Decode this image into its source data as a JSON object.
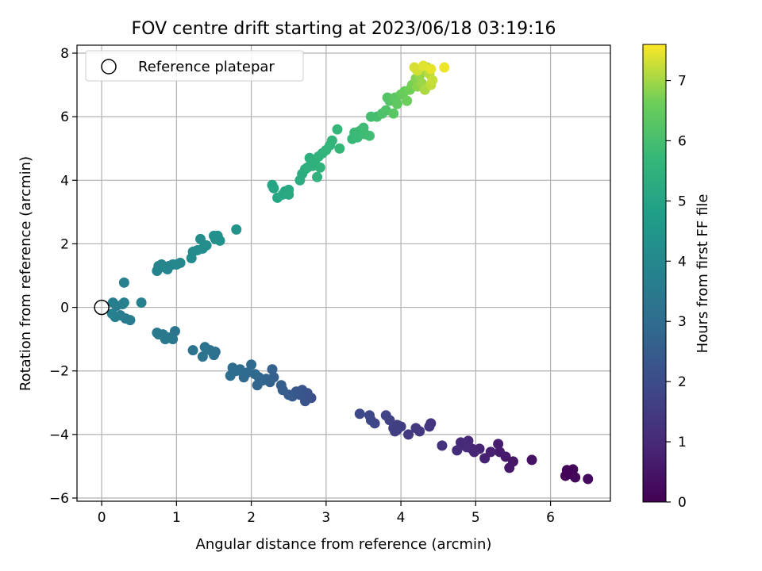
{
  "chart_data": {
    "type": "scatter",
    "title": "FOV centre drift starting at 2023/06/18 03:19:16",
    "xlabel": "Angular distance from reference (arcmin)",
    "ylabel": "Rotation from reference (arcmin)",
    "xlim": [
      -0.33,
      6.8
    ],
    "ylim": [
      -6.1,
      8.25
    ],
    "xticks": [
      0,
      1,
      2,
      3,
      4,
      5,
      6
    ],
    "yticks": [
      -6,
      -4,
      -2,
      0,
      2,
      4,
      6,
      8
    ],
    "grid": true,
    "legend": {
      "position": "top-left",
      "entries": [
        "Reference platepar"
      ]
    },
    "reference_point": {
      "x": 0,
      "y": 0,
      "label": "Reference platepar"
    },
    "colorbar": {
      "label": "Hours from first FF file",
      "colormap": "viridis",
      "range": [
        0,
        7.6
      ],
      "ticks": [
        0,
        1,
        2,
        3,
        4,
        5,
        6,
        7
      ]
    },
    "points": [
      {
        "x": 6.2,
        "y": -5.3,
        "c": 0.05
      },
      {
        "x": 6.22,
        "y": -5.12,
        "c": 0.1
      },
      {
        "x": 6.25,
        "y": -5.18,
        "c": 0.12
      },
      {
        "x": 6.3,
        "y": -5.1,
        "c": 0.15
      },
      {
        "x": 6.28,
        "y": -5.25,
        "c": 0.08
      },
      {
        "x": 6.33,
        "y": -5.35,
        "c": 0.2
      },
      {
        "x": 6.5,
        "y": -5.4,
        "c": 0.25
      },
      {
        "x": 5.75,
        "y": -4.8,
        "c": 0.4
      },
      {
        "x": 5.5,
        "y": -4.85,
        "c": 0.5
      },
      {
        "x": 5.45,
        "y": -5.05,
        "c": 0.55
      },
      {
        "x": 5.4,
        "y": -4.7,
        "c": 0.6
      },
      {
        "x": 5.32,
        "y": -4.55,
        "c": 0.65
      },
      {
        "x": 5.3,
        "y": -4.3,
        "c": 0.7
      },
      {
        "x": 5.2,
        "y": -4.55,
        "c": 0.75
      },
      {
        "x": 5.12,
        "y": -4.75,
        "c": 0.8
      },
      {
        "x": 5.05,
        "y": -4.45,
        "c": 0.85
      },
      {
        "x": 4.95,
        "y": -4.45,
        "c": 0.9
      },
      {
        "x": 4.9,
        "y": -4.2,
        "c": 0.95
      },
      {
        "x": 4.85,
        "y": -4.35,
        "c": 1.0
      },
      {
        "x": 4.8,
        "y": -4.25,
        "c": 1.05
      },
      {
        "x": 4.75,
        "y": -4.5,
        "c": 1.1
      },
      {
        "x": 4.88,
        "y": -4.4,
        "c": 1.0
      },
      {
        "x": 4.98,
        "y": -4.55,
        "c": 0.9
      },
      {
        "x": 4.55,
        "y": -4.35,
        "c": 1.2
      },
      {
        "x": 4.4,
        "y": -3.65,
        "c": 1.3
      },
      {
        "x": 4.38,
        "y": -3.75,
        "c": 1.35
      },
      {
        "x": 4.25,
        "y": -3.9,
        "c": 1.4
      },
      {
        "x": 4.2,
        "y": -3.8,
        "c": 1.45
      },
      {
        "x": 4.1,
        "y": -4.0,
        "c": 1.5
      },
      {
        "x": 4.0,
        "y": -3.75,
        "c": 1.55
      },
      {
        "x": 3.95,
        "y": -3.7,
        "c": 1.6
      },
      {
        "x": 3.92,
        "y": -3.9,
        "c": 1.62
      },
      {
        "x": 3.9,
        "y": -3.8,
        "c": 1.65
      },
      {
        "x": 3.85,
        "y": -3.55,
        "c": 1.7
      },
      {
        "x": 3.8,
        "y": -3.4,
        "c": 1.72
      },
      {
        "x": 3.95,
        "y": -3.85,
        "c": 1.58
      },
      {
        "x": 3.65,
        "y": -3.65,
        "c": 1.8
      },
      {
        "x": 3.6,
        "y": -3.55,
        "c": 1.85
      },
      {
        "x": 3.58,
        "y": -3.4,
        "c": 1.88
      },
      {
        "x": 3.45,
        "y": -3.35,
        "c": 1.9
      },
      {
        "x": 2.8,
        "y": -2.85,
        "c": 2.1
      },
      {
        "x": 2.75,
        "y": -2.7,
        "c": 2.15
      },
      {
        "x": 2.72,
        "y": -2.95,
        "c": 2.2
      },
      {
        "x": 2.68,
        "y": -2.6,
        "c": 2.25
      },
      {
        "x": 2.65,
        "y": -2.75,
        "c": 2.3
      },
      {
        "x": 2.6,
        "y": -2.65,
        "c": 2.35
      },
      {
        "x": 2.55,
        "y": -2.8,
        "c": 2.4
      },
      {
        "x": 2.5,
        "y": -2.75,
        "c": 2.45
      },
      {
        "x": 2.42,
        "y": -2.6,
        "c": 2.5
      },
      {
        "x": 2.4,
        "y": -2.45,
        "c": 2.55
      },
      {
        "x": 2.3,
        "y": -2.2,
        "c": 2.6
      },
      {
        "x": 2.28,
        "y": -1.95,
        "c": 2.65
      },
      {
        "x": 2.25,
        "y": -2.35,
        "c": 2.7
      },
      {
        "x": 2.2,
        "y": -2.25,
        "c": 2.72
      },
      {
        "x": 2.15,
        "y": -2.3,
        "c": 2.75
      },
      {
        "x": 2.1,
        "y": -2.2,
        "c": 2.78
      },
      {
        "x": 2.08,
        "y": -2.45,
        "c": 2.8
      },
      {
        "x": 2.05,
        "y": -2.1,
        "c": 2.85
      },
      {
        "x": 2.0,
        "y": -1.8,
        "c": 2.9
      },
      {
        "x": 1.95,
        "y": -2.05,
        "c": 2.92
      },
      {
        "x": 1.9,
        "y": -2.2,
        "c": 2.95
      },
      {
        "x": 1.85,
        "y": -1.95,
        "c": 3.0
      },
      {
        "x": 1.8,
        "y": -2.0,
        "c": 3.02
      },
      {
        "x": 1.75,
        "y": -1.9,
        "c": 3.05
      },
      {
        "x": 1.72,
        "y": -2.15,
        "c": 3.08
      },
      {
        "x": 1.52,
        "y": -1.4,
        "c": 3.15
      },
      {
        "x": 1.5,
        "y": -1.5,
        "c": 3.18
      },
      {
        "x": 1.45,
        "y": -1.35,
        "c": 3.2
      },
      {
        "x": 1.38,
        "y": -1.25,
        "c": 3.22
      },
      {
        "x": 1.35,
        "y": -1.55,
        "c": 3.25
      },
      {
        "x": 1.22,
        "y": -1.35,
        "c": 3.3
      },
      {
        "x": 0.98,
        "y": -0.75,
        "c": 3.35
      },
      {
        "x": 0.95,
        "y": -1.0,
        "c": 3.38
      },
      {
        "x": 0.9,
        "y": -0.95,
        "c": 3.4
      },
      {
        "x": 0.85,
        "y": -1.0,
        "c": 3.42
      },
      {
        "x": 0.82,
        "y": -0.85,
        "c": 3.45
      },
      {
        "x": 0.76,
        "y": -0.85,
        "c": 3.48
      },
      {
        "x": 0.74,
        "y": -0.8,
        "c": 3.5
      },
      {
        "x": 0.38,
        "y": -0.4,
        "c": 3.55
      },
      {
        "x": 0.32,
        "y": -0.35,
        "c": 3.58
      },
      {
        "x": 0.28,
        "y": 0.1,
        "c": 3.6
      },
      {
        "x": 0.25,
        "y": -0.25,
        "c": 3.62
      },
      {
        "x": 0.2,
        "y": 0.05,
        "c": 3.65
      },
      {
        "x": 0.18,
        "y": -0.3,
        "c": 3.68
      },
      {
        "x": 0.15,
        "y": 0.15,
        "c": 3.7
      },
      {
        "x": 0.14,
        "y": -0.2,
        "c": 3.72
      },
      {
        "x": 0.3,
        "y": 0.78,
        "c": 3.75
      },
      {
        "x": 0.53,
        "y": 0.15,
        "c": 3.78
      },
      {
        "x": 0.3,
        "y": 0.15,
        "c": 3.74
      },
      {
        "x": 0.74,
        "y": 1.15,
        "c": 3.85
      },
      {
        "x": 0.76,
        "y": 1.3,
        "c": 3.88
      },
      {
        "x": 0.8,
        "y": 1.35,
        "c": 3.9
      },
      {
        "x": 0.85,
        "y": 1.25,
        "c": 3.92
      },
      {
        "x": 0.9,
        "y": 1.3,
        "c": 3.95
      },
      {
        "x": 0.95,
        "y": 1.35,
        "c": 3.98
      },
      {
        "x": 1.0,
        "y": 1.35,
        "c": 4.0
      },
      {
        "x": 1.05,
        "y": 1.4,
        "c": 4.02
      },
      {
        "x": 0.88,
        "y": 1.2,
        "c": 3.93
      },
      {
        "x": 1.2,
        "y": 1.55,
        "c": 4.1
      },
      {
        "x": 1.22,
        "y": 1.75,
        "c": 4.12
      },
      {
        "x": 1.28,
        "y": 1.8,
        "c": 4.15
      },
      {
        "x": 1.32,
        "y": 2.15,
        "c": 4.18
      },
      {
        "x": 1.35,
        "y": 1.85,
        "c": 4.2
      },
      {
        "x": 1.4,
        "y": 1.95,
        "c": 4.22
      },
      {
        "x": 1.5,
        "y": 2.25,
        "c": 4.25
      },
      {
        "x": 1.52,
        "y": 2.15,
        "c": 4.28
      },
      {
        "x": 1.55,
        "y": 2.25,
        "c": 4.3
      },
      {
        "x": 1.58,
        "y": 2.1,
        "c": 4.32
      },
      {
        "x": 1.8,
        "y": 2.45,
        "c": 4.4
      },
      {
        "x": 2.28,
        "y": 3.85,
        "c": 5.0
      },
      {
        "x": 2.3,
        "y": 3.75,
        "c": 5.02
      },
      {
        "x": 2.35,
        "y": 3.45,
        "c": 5.05
      },
      {
        "x": 2.42,
        "y": 3.55,
        "c": 5.08
      },
      {
        "x": 2.45,
        "y": 3.65,
        "c": 5.1
      },
      {
        "x": 2.5,
        "y": 3.7,
        "c": 5.12
      },
      {
        "x": 2.5,
        "y": 3.55,
        "c": 5.15
      },
      {
        "x": 2.65,
        "y": 4.0,
        "c": 5.3
      },
      {
        "x": 2.68,
        "y": 4.2,
        "c": 5.32
      },
      {
        "x": 2.72,
        "y": 4.35,
        "c": 5.35
      },
      {
        "x": 2.75,
        "y": 4.4,
        "c": 5.38
      },
      {
        "x": 2.78,
        "y": 4.7,
        "c": 5.4
      },
      {
        "x": 2.82,
        "y": 4.45,
        "c": 5.42
      },
      {
        "x": 2.85,
        "y": 4.6,
        "c": 5.45
      },
      {
        "x": 2.88,
        "y": 4.1,
        "c": 5.48
      },
      {
        "x": 2.9,
        "y": 4.75,
        "c": 5.5
      },
      {
        "x": 2.92,
        "y": 4.4,
        "c": 5.52
      },
      {
        "x": 2.95,
        "y": 4.85,
        "c": 5.55
      },
      {
        "x": 3.0,
        "y": 4.95,
        "c": 5.58
      },
      {
        "x": 3.05,
        "y": 5.1,
        "c": 5.6
      },
      {
        "x": 3.08,
        "y": 5.25,
        "c": 5.62
      },
      {
        "x": 3.15,
        "y": 5.6,
        "c": 5.65
      },
      {
        "x": 3.18,
        "y": 5.0,
        "c": 5.68
      },
      {
        "x": 3.35,
        "y": 5.3,
        "c": 5.75
      },
      {
        "x": 3.38,
        "y": 5.5,
        "c": 5.78
      },
      {
        "x": 3.42,
        "y": 5.35,
        "c": 5.8
      },
      {
        "x": 3.45,
        "y": 5.55,
        "c": 5.82
      },
      {
        "x": 3.5,
        "y": 5.65,
        "c": 5.85
      },
      {
        "x": 3.52,
        "y": 5.45,
        "c": 5.88
      },
      {
        "x": 3.58,
        "y": 5.4,
        "c": 5.9
      },
      {
        "x": 3.6,
        "y": 6.0,
        "c": 5.95
      },
      {
        "x": 3.68,
        "y": 6.0,
        "c": 6.0
      },
      {
        "x": 3.75,
        "y": 6.1,
        "c": 6.1
      },
      {
        "x": 3.8,
        "y": 6.2,
        "c": 6.15
      },
      {
        "x": 3.82,
        "y": 6.6,
        "c": 6.2
      },
      {
        "x": 3.85,
        "y": 6.5,
        "c": 6.25
      },
      {
        "x": 3.9,
        "y": 6.1,
        "c": 6.3
      },
      {
        "x": 3.92,
        "y": 6.6,
        "c": 6.35
      },
      {
        "x": 3.95,
        "y": 6.4,
        "c": 6.4
      },
      {
        "x": 4.0,
        "y": 6.7,
        "c": 6.5
      },
      {
        "x": 4.05,
        "y": 6.8,
        "c": 6.55
      },
      {
        "x": 4.08,
        "y": 6.5,
        "c": 6.6
      },
      {
        "x": 4.12,
        "y": 6.85,
        "c": 6.65
      },
      {
        "x": 4.15,
        "y": 7.0,
        "c": 6.7
      },
      {
        "x": 4.2,
        "y": 7.2,
        "c": 6.8
      },
      {
        "x": 4.22,
        "y": 6.95,
        "c": 6.85
      },
      {
        "x": 4.25,
        "y": 7.3,
        "c": 6.9
      },
      {
        "x": 4.28,
        "y": 7.05,
        "c": 6.95
      },
      {
        "x": 4.3,
        "y": 7.45,
        "c": 7.0
      },
      {
        "x": 4.32,
        "y": 6.85,
        "c": 7.05
      },
      {
        "x": 4.35,
        "y": 7.55,
        "c": 7.1
      },
      {
        "x": 4.38,
        "y": 7.35,
        "c": 7.15
      },
      {
        "x": 4.4,
        "y": 7.0,
        "c": 7.2
      },
      {
        "x": 4.42,
        "y": 7.15,
        "c": 7.25
      },
      {
        "x": 4.22,
        "y": 7.45,
        "c": 7.3
      },
      {
        "x": 4.18,
        "y": 7.55,
        "c": 7.35
      },
      {
        "x": 4.3,
        "y": 7.6,
        "c": 7.4
      },
      {
        "x": 4.58,
        "y": 7.55,
        "c": 7.5
      },
      {
        "x": 4.4,
        "y": 7.5,
        "c": 7.45
      }
    ]
  }
}
